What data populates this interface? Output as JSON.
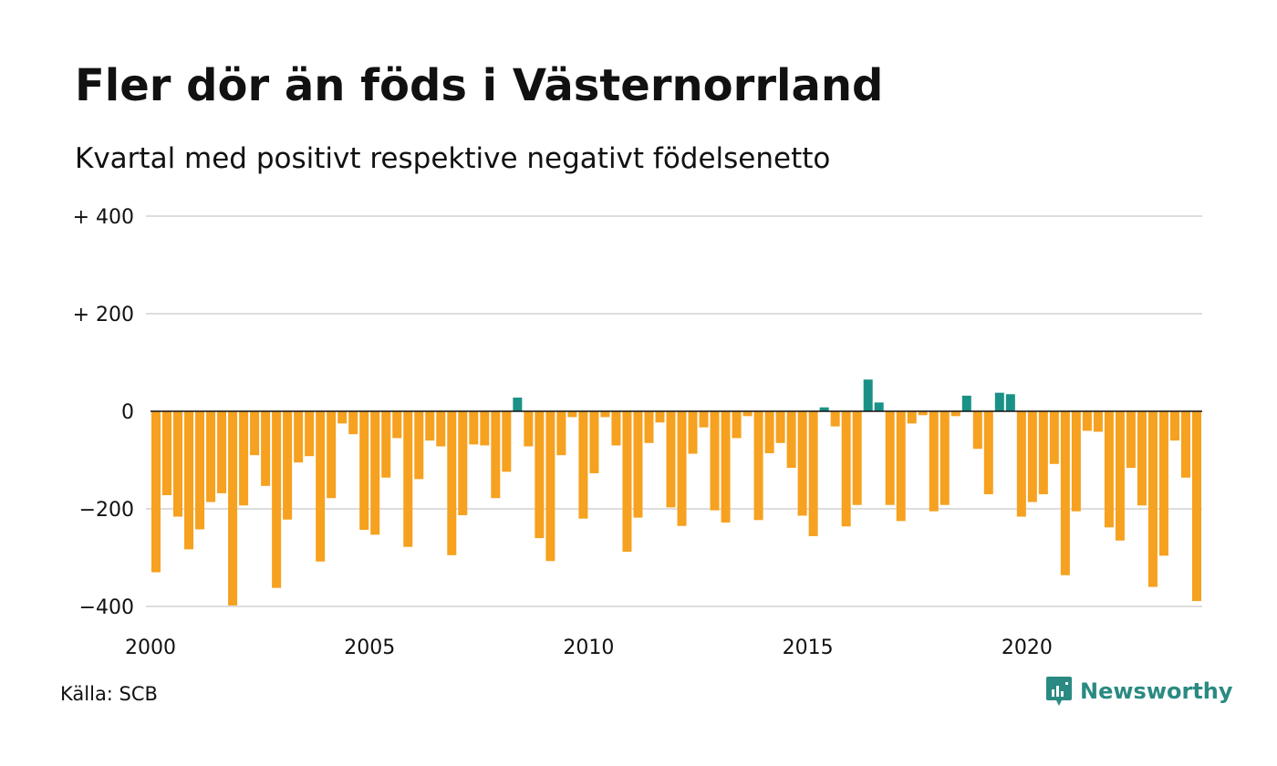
{
  "title": "Fler dör än föds i Västernorrland",
  "subtitle": "Kvartal med positivt respektive negativt födelsenetto",
  "source": "Källa: SCB",
  "brand": {
    "name": "Newsworthy",
    "icon": "newsworthy-logo-icon",
    "color": "#2a8a82"
  },
  "colors": {
    "positive": "#1a9187",
    "negative": "#f6a11f",
    "grid": "#dddddd",
    "zero_line": "#111111"
  },
  "chart_data": {
    "type": "bar",
    "x_range": [
      2000,
      2024
    ],
    "ylim": [
      -400,
      400
    ],
    "y_ticks": [
      {
        "value": 400,
        "label": "+ 400"
      },
      {
        "value": 200,
        "label": "+ 200"
      },
      {
        "value": 0,
        "label": "0"
      },
      {
        "value": -200,
        "label": "−200"
      },
      {
        "value": -400,
        "label": "−400"
      }
    ],
    "x_ticks": [
      {
        "value": 2000,
        "label": "2000"
      },
      {
        "value": 2005,
        "label": "2005"
      },
      {
        "value": 2010,
        "label": "2010"
      },
      {
        "value": 2015,
        "label": "2015"
      },
      {
        "value": 2020,
        "label": "2020"
      }
    ],
    "grid": true,
    "series": [
      {
        "x": [
          "2000-Q1",
          "2000-Q2",
          "2000-Q3",
          "2000-Q4",
          "2001-Q1",
          "2001-Q2",
          "2001-Q3",
          "2001-Q4",
          "2002-Q1",
          "2002-Q2",
          "2002-Q3",
          "2002-Q4",
          "2003-Q1",
          "2003-Q2",
          "2003-Q3",
          "2003-Q4",
          "2004-Q1",
          "2004-Q2",
          "2004-Q3",
          "2004-Q4",
          "2005-Q1",
          "2005-Q2",
          "2005-Q3",
          "2005-Q4",
          "2006-Q1",
          "2006-Q2",
          "2006-Q3",
          "2006-Q4",
          "2007-Q1",
          "2007-Q2",
          "2007-Q3",
          "2007-Q4",
          "2008-Q1",
          "2008-Q2",
          "2008-Q3",
          "2008-Q4",
          "2009-Q1",
          "2009-Q2",
          "2009-Q3",
          "2009-Q4",
          "2010-Q1",
          "2010-Q2",
          "2010-Q3",
          "2010-Q4",
          "2011-Q1",
          "2011-Q2",
          "2011-Q3",
          "2011-Q4",
          "2012-Q1",
          "2012-Q2",
          "2012-Q3",
          "2012-Q4",
          "2013-Q1",
          "2013-Q2",
          "2013-Q3",
          "2013-Q4",
          "2014-Q1",
          "2014-Q2",
          "2014-Q3",
          "2014-Q4",
          "2015-Q1",
          "2015-Q2",
          "2015-Q3",
          "2015-Q4",
          "2016-Q1",
          "2016-Q2",
          "2016-Q3",
          "2016-Q4",
          "2017-Q1",
          "2017-Q2",
          "2017-Q3",
          "2017-Q4",
          "2018-Q1",
          "2018-Q2",
          "2018-Q3",
          "2018-Q4",
          "2019-Q1",
          "2019-Q2",
          "2019-Q3",
          "2019-Q4",
          "2020-Q1",
          "2020-Q2",
          "2020-Q3",
          "2020-Q4",
          "2021-Q1",
          "2021-Q2",
          "2021-Q3",
          "2021-Q4",
          "2022-Q1",
          "2022-Q2",
          "2022-Q3",
          "2022-Q4",
          "2023-Q1",
          "2023-Q2",
          "2023-Q3",
          "2023-Q4"
        ],
        "values": [
          -330,
          -172,
          -216,
          -283,
          -242,
          -186,
          -168,
          -398,
          -193,
          -90,
          -153,
          -362,
          -222,
          -105,
          -92,
          -308,
          -178,
          -25,
          -47,
          -243,
          -253,
          -136,
          -55,
          -278,
          -139,
          -60,
          -72,
          -295,
          -213,
          -68,
          -70,
          -178,
          -124,
          28,
          -72,
          -260,
          -307,
          -90,
          -12,
          -220,
          -127,
          -12,
          -70,
          -288,
          -218,
          -65,
          -23,
          -197,
          -235,
          -87,
          -33,
          -203,
          -228,
          -55,
          -10,
          -223,
          -86,
          -65,
          -116,
          -214,
          -256,
          8,
          -31,
          -236,
          -192,
          65,
          18,
          -192,
          -225,
          -25,
          -8,
          -205,
          -192,
          -10,
          32,
          -77,
          -170,
          38,
          35,
          -216,
          -186,
          -170,
          -108,
          -336,
          -205,
          -40,
          -42,
          -238,
          -265,
          -116,
          -193,
          -360,
          -296,
          -60,
          -136,
          -389
        ]
      }
    ]
  }
}
